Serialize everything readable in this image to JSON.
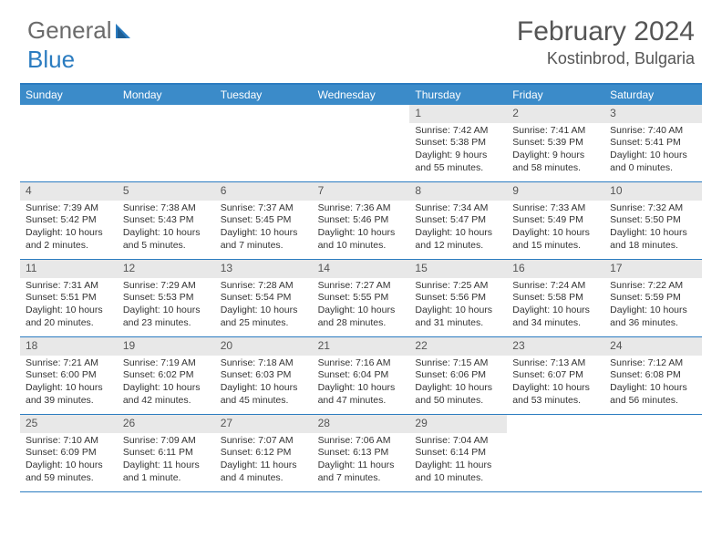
{
  "logo": {
    "text1": "General",
    "text2": "Blue"
  },
  "title": "February 2024",
  "location": "Kostinbrod, Bulgaria",
  "colors": {
    "header_bar": "#3b8bc9",
    "border": "#2b7cc0",
    "daynum_bg": "#e8e8e8",
    "text": "#333333",
    "title_text": "#555555"
  },
  "dow": [
    "Sunday",
    "Monday",
    "Tuesday",
    "Wednesday",
    "Thursday",
    "Friday",
    "Saturday"
  ],
  "weeks": [
    [
      {
        "n": "",
        "sr": "",
        "ss": "",
        "dl": ""
      },
      {
        "n": "",
        "sr": "",
        "ss": "",
        "dl": ""
      },
      {
        "n": "",
        "sr": "",
        "ss": "",
        "dl": ""
      },
      {
        "n": "",
        "sr": "",
        "ss": "",
        "dl": ""
      },
      {
        "n": "1",
        "sr": "Sunrise: 7:42 AM",
        "ss": "Sunset: 5:38 PM",
        "dl": "Daylight: 9 hours and 55 minutes."
      },
      {
        "n": "2",
        "sr": "Sunrise: 7:41 AM",
        "ss": "Sunset: 5:39 PM",
        "dl": "Daylight: 9 hours and 58 minutes."
      },
      {
        "n": "3",
        "sr": "Sunrise: 7:40 AM",
        "ss": "Sunset: 5:41 PM",
        "dl": "Daylight: 10 hours and 0 minutes."
      }
    ],
    [
      {
        "n": "4",
        "sr": "Sunrise: 7:39 AM",
        "ss": "Sunset: 5:42 PM",
        "dl": "Daylight: 10 hours and 2 minutes."
      },
      {
        "n": "5",
        "sr": "Sunrise: 7:38 AM",
        "ss": "Sunset: 5:43 PM",
        "dl": "Daylight: 10 hours and 5 minutes."
      },
      {
        "n": "6",
        "sr": "Sunrise: 7:37 AM",
        "ss": "Sunset: 5:45 PM",
        "dl": "Daylight: 10 hours and 7 minutes."
      },
      {
        "n": "7",
        "sr": "Sunrise: 7:36 AM",
        "ss": "Sunset: 5:46 PM",
        "dl": "Daylight: 10 hours and 10 minutes."
      },
      {
        "n": "8",
        "sr": "Sunrise: 7:34 AM",
        "ss": "Sunset: 5:47 PM",
        "dl": "Daylight: 10 hours and 12 minutes."
      },
      {
        "n": "9",
        "sr": "Sunrise: 7:33 AM",
        "ss": "Sunset: 5:49 PM",
        "dl": "Daylight: 10 hours and 15 minutes."
      },
      {
        "n": "10",
        "sr": "Sunrise: 7:32 AM",
        "ss": "Sunset: 5:50 PM",
        "dl": "Daylight: 10 hours and 18 minutes."
      }
    ],
    [
      {
        "n": "11",
        "sr": "Sunrise: 7:31 AM",
        "ss": "Sunset: 5:51 PM",
        "dl": "Daylight: 10 hours and 20 minutes."
      },
      {
        "n": "12",
        "sr": "Sunrise: 7:29 AM",
        "ss": "Sunset: 5:53 PM",
        "dl": "Daylight: 10 hours and 23 minutes."
      },
      {
        "n": "13",
        "sr": "Sunrise: 7:28 AM",
        "ss": "Sunset: 5:54 PM",
        "dl": "Daylight: 10 hours and 25 minutes."
      },
      {
        "n": "14",
        "sr": "Sunrise: 7:27 AM",
        "ss": "Sunset: 5:55 PM",
        "dl": "Daylight: 10 hours and 28 minutes."
      },
      {
        "n": "15",
        "sr": "Sunrise: 7:25 AM",
        "ss": "Sunset: 5:56 PM",
        "dl": "Daylight: 10 hours and 31 minutes."
      },
      {
        "n": "16",
        "sr": "Sunrise: 7:24 AM",
        "ss": "Sunset: 5:58 PM",
        "dl": "Daylight: 10 hours and 34 minutes."
      },
      {
        "n": "17",
        "sr": "Sunrise: 7:22 AM",
        "ss": "Sunset: 5:59 PM",
        "dl": "Daylight: 10 hours and 36 minutes."
      }
    ],
    [
      {
        "n": "18",
        "sr": "Sunrise: 7:21 AM",
        "ss": "Sunset: 6:00 PM",
        "dl": "Daylight: 10 hours and 39 minutes."
      },
      {
        "n": "19",
        "sr": "Sunrise: 7:19 AM",
        "ss": "Sunset: 6:02 PM",
        "dl": "Daylight: 10 hours and 42 minutes."
      },
      {
        "n": "20",
        "sr": "Sunrise: 7:18 AM",
        "ss": "Sunset: 6:03 PM",
        "dl": "Daylight: 10 hours and 45 minutes."
      },
      {
        "n": "21",
        "sr": "Sunrise: 7:16 AM",
        "ss": "Sunset: 6:04 PM",
        "dl": "Daylight: 10 hours and 47 minutes."
      },
      {
        "n": "22",
        "sr": "Sunrise: 7:15 AM",
        "ss": "Sunset: 6:06 PM",
        "dl": "Daylight: 10 hours and 50 minutes."
      },
      {
        "n": "23",
        "sr": "Sunrise: 7:13 AM",
        "ss": "Sunset: 6:07 PM",
        "dl": "Daylight: 10 hours and 53 minutes."
      },
      {
        "n": "24",
        "sr": "Sunrise: 7:12 AM",
        "ss": "Sunset: 6:08 PM",
        "dl": "Daylight: 10 hours and 56 minutes."
      }
    ],
    [
      {
        "n": "25",
        "sr": "Sunrise: 7:10 AM",
        "ss": "Sunset: 6:09 PM",
        "dl": "Daylight: 10 hours and 59 minutes."
      },
      {
        "n": "26",
        "sr": "Sunrise: 7:09 AM",
        "ss": "Sunset: 6:11 PM",
        "dl": "Daylight: 11 hours and 1 minute."
      },
      {
        "n": "27",
        "sr": "Sunrise: 7:07 AM",
        "ss": "Sunset: 6:12 PM",
        "dl": "Daylight: 11 hours and 4 minutes."
      },
      {
        "n": "28",
        "sr": "Sunrise: 7:06 AM",
        "ss": "Sunset: 6:13 PM",
        "dl": "Daylight: 11 hours and 7 minutes."
      },
      {
        "n": "29",
        "sr": "Sunrise: 7:04 AM",
        "ss": "Sunset: 6:14 PM",
        "dl": "Daylight: 11 hours and 10 minutes."
      },
      {
        "n": "",
        "sr": "",
        "ss": "",
        "dl": ""
      },
      {
        "n": "",
        "sr": "",
        "ss": "",
        "dl": ""
      }
    ]
  ]
}
